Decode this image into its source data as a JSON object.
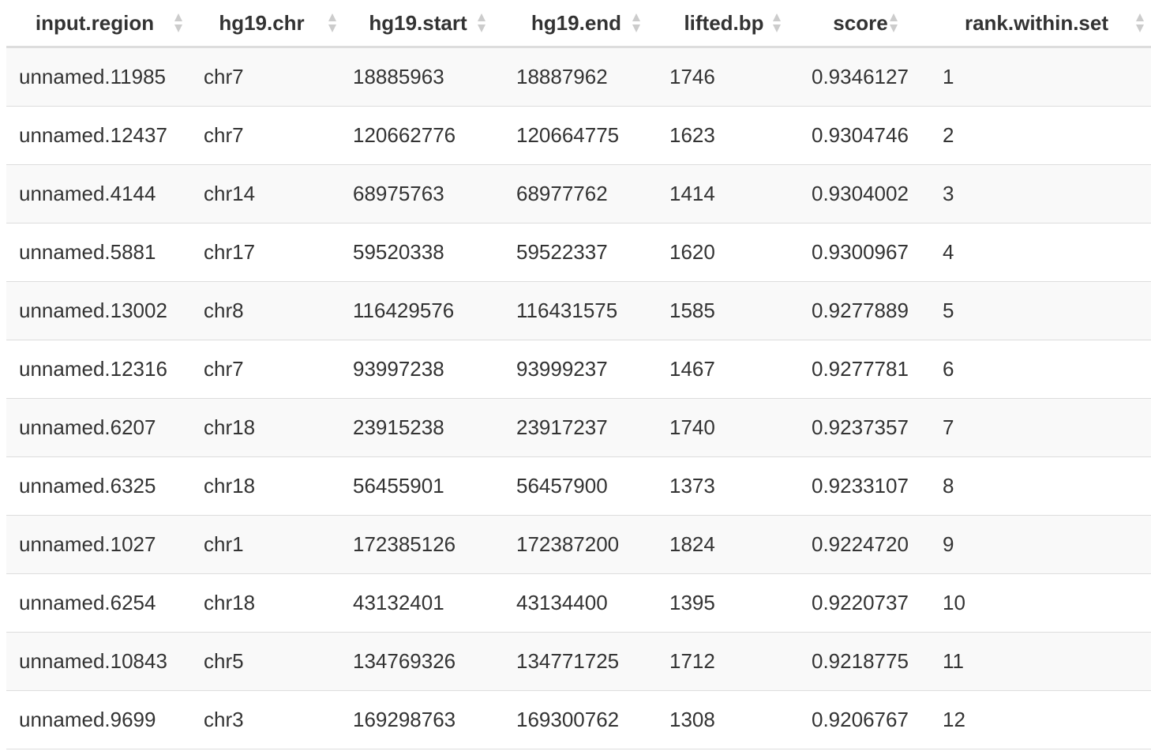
{
  "table": {
    "columns": [
      {
        "label": "input.region"
      },
      {
        "label": "hg19.chr"
      },
      {
        "label": "hg19.start"
      },
      {
        "label": "hg19.end"
      },
      {
        "label": "lifted.bp"
      },
      {
        "label": "score"
      },
      {
        "label": "rank.within.set"
      }
    ],
    "sort_icon": "sort-up-down-icon",
    "colors": {
      "stripe": "#f9f9f9",
      "border": "#dddddd",
      "text": "#333333",
      "sort_icon": "#cccccc"
    },
    "rows": [
      [
        "unnamed.11985",
        "chr7",
        "18885963",
        "18887962",
        "1746",
        "0.9346127",
        "1"
      ],
      [
        "unnamed.12437",
        "chr7",
        "120662776",
        "120664775",
        "1623",
        "0.9304746",
        "2"
      ],
      [
        "unnamed.4144",
        "chr14",
        "68975763",
        "68977762",
        "1414",
        "0.9304002",
        "3"
      ],
      [
        "unnamed.5881",
        "chr17",
        "59520338",
        "59522337",
        "1620",
        "0.9300967",
        "4"
      ],
      [
        "unnamed.13002",
        "chr8",
        "116429576",
        "116431575",
        "1585",
        "0.9277889",
        "5"
      ],
      [
        "unnamed.12316",
        "chr7",
        "93997238",
        "93999237",
        "1467",
        "0.9277781",
        "6"
      ],
      [
        "unnamed.6207",
        "chr18",
        "23915238",
        "23917237",
        "1740",
        "0.9237357",
        "7"
      ],
      [
        "unnamed.6325",
        "chr18",
        "56455901",
        "56457900",
        "1373",
        "0.9233107",
        "8"
      ],
      [
        "unnamed.1027",
        "chr1",
        "172385126",
        "172387200",
        "1824",
        "0.9224720",
        "9"
      ],
      [
        "unnamed.6254",
        "chr18",
        "43132401",
        "43134400",
        "1395",
        "0.9220737",
        "10"
      ],
      [
        "unnamed.10843",
        "chr5",
        "134769326",
        "134771725",
        "1712",
        "0.9218775",
        "11"
      ],
      [
        "unnamed.9699",
        "chr3",
        "169298763",
        "169300762",
        "1308",
        "0.9206767",
        "12"
      ]
    ]
  }
}
